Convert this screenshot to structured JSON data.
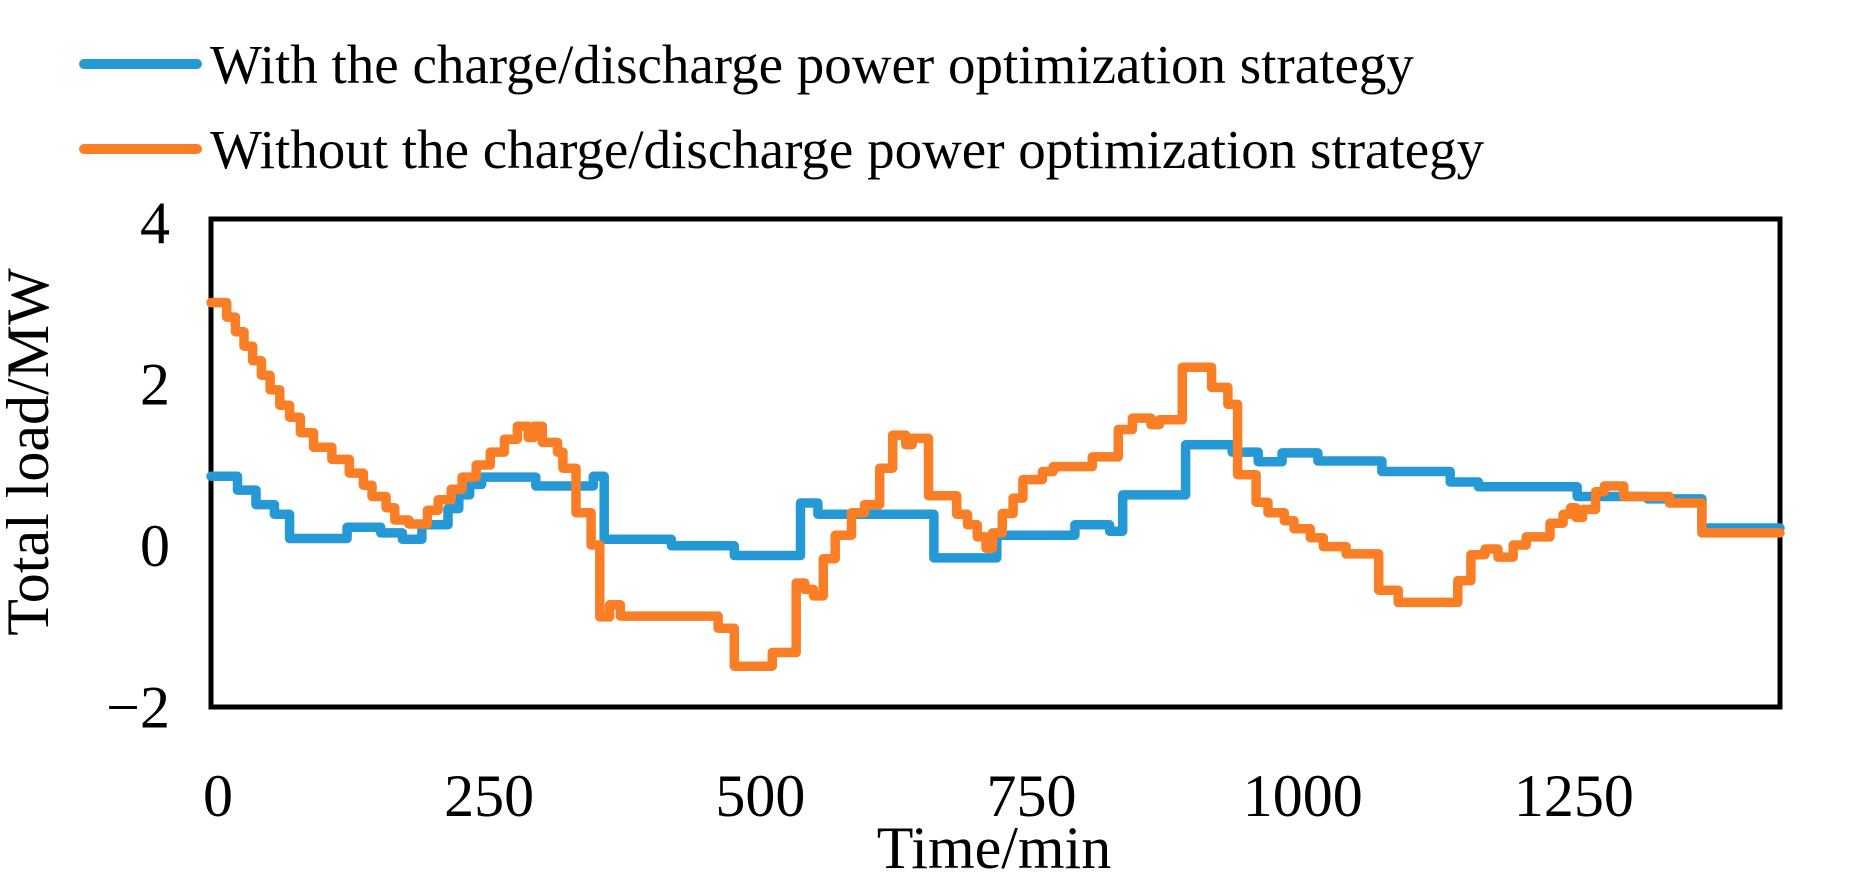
{
  "chart_data": {
    "type": "line",
    "line_style": "step-after",
    "title": "",
    "xlabel": "Time/min",
    "ylabel": "Total load/MW",
    "xlim": [
      0,
      1440
    ],
    "ylim": [
      -2,
      4
    ],
    "grid": false,
    "legend_position": "top-left",
    "x_ticks": [
      {
        "value": 0,
        "label": "0"
      },
      {
        "value": 250,
        "label": "250"
      },
      {
        "value": 500,
        "label": "500"
      },
      {
        "value": 750,
        "label": "750"
      },
      {
        "value": 1000,
        "label": "1000"
      },
      {
        "value": 1250,
        "label": "1250"
      }
    ],
    "y_ticks": [
      {
        "value": 4,
        "label": "4"
      },
      {
        "value": 2,
        "label": "2"
      },
      {
        "value": 0,
        "label": "0"
      },
      {
        "value": -2,
        "label": "−2"
      }
    ],
    "series": [
      {
        "name": "With the charge/discharge power optimization strategy",
        "color": "#2499D6",
        "points": [
          [
            0,
            0.85
          ],
          [
            18,
            0.68
          ],
          [
            35,
            0.5
          ],
          [
            52,
            0.38
          ],
          [
            66,
            0.08
          ],
          [
            119,
            0.22
          ],
          [
            150,
            0.15
          ],
          [
            170,
            0.07
          ],
          [
            188,
            0.25
          ],
          [
            212,
            0.45
          ],
          [
            222,
            0.62
          ],
          [
            232,
            0.75
          ],
          [
            243,
            0.84
          ],
          [
            293,
            0.73
          ],
          [
            346,
            0.85
          ],
          [
            356,
            0.07
          ],
          [
            418,
            -0.01
          ],
          [
            476,
            -0.13
          ],
          [
            537,
            0.52
          ],
          [
            553,
            0.38
          ],
          [
            660,
            -0.16
          ],
          [
            718,
            0.12
          ],
          [
            790,
            0.25
          ],
          [
            822,
            0.17
          ],
          [
            834,
            0.62
          ],
          [
            892,
            1.24
          ],
          [
            935,
            1.15
          ],
          [
            959,
            1.03
          ],
          [
            981,
            1.14
          ],
          [
            1014,
            1.04
          ],
          [
            1073,
            0.91
          ],
          [
            1136,
            0.78
          ],
          [
            1162,
            0.72
          ],
          [
            1253,
            0.6
          ],
          [
            1318,
            0.57
          ],
          [
            1368,
            0.21
          ],
          [
            1440,
            0.21
          ]
        ]
      },
      {
        "name": "Without the charge/discharge power optimization strategy",
        "color": "#F97E26",
        "points": [
          [
            0,
            3.0
          ],
          [
            8,
            2.82
          ],
          [
            16,
            2.64
          ],
          [
            24,
            2.46
          ],
          [
            32,
            2.28
          ],
          [
            40,
            2.1
          ],
          [
            48,
            1.92
          ],
          [
            57,
            1.73
          ],
          [
            66,
            1.58
          ],
          [
            76,
            1.39
          ],
          [
            88,
            1.21
          ],
          [
            105,
            1.06
          ],
          [
            121,
            0.89
          ],
          [
            134,
            0.74
          ],
          [
            142,
            0.6
          ],
          [
            155,
            0.46
          ],
          [
            163,
            0.31
          ],
          [
            176,
            0.26
          ],
          [
            193,
            0.43
          ],
          [
            203,
            0.56
          ],
          [
            215,
            0.69
          ],
          [
            225,
            0.84
          ],
          [
            238,
            0.99
          ],
          [
            251,
            1.15
          ],
          [
            264,
            1.31
          ],
          [
            276,
            1.47
          ],
          [
            286,
            1.33
          ],
          [
            291,
            1.47
          ],
          [
            299,
            1.27
          ],
          [
            313,
            1.15
          ],
          [
            318,
            0.95
          ],
          [
            330,
            0.4
          ],
          [
            344,
            0.0
          ],
          [
            352,
            -0.89
          ],
          [
            361,
            -0.74
          ],
          [
            371,
            -0.88
          ],
          [
            461,
            -1.03
          ],
          [
            476,
            -1.5
          ],
          [
            511,
            -1.33
          ],
          [
            533,
            -0.47
          ],
          [
            541,
            -0.55
          ],
          [
            549,
            -0.63
          ],
          [
            558,
            -0.17
          ],
          [
            569,
            0.12
          ],
          [
            584,
            0.4
          ],
          [
            596,
            0.5
          ],
          [
            610,
            0.95
          ],
          [
            622,
            1.36
          ],
          [
            634,
            1.24
          ],
          [
            640,
            1.32
          ],
          [
            655,
            0.61
          ],
          [
            681,
            0.38
          ],
          [
            691,
            0.25
          ],
          [
            700,
            0.1
          ],
          [
            708,
            -0.04
          ],
          [
            714,
            0.15
          ],
          [
            723,
            0.39
          ],
          [
            733,
            0.58
          ],
          [
            742,
            0.81
          ],
          [
            760,
            0.91
          ],
          [
            770,
            0.97
          ],
          [
            806,
            1.09
          ],
          [
            830,
            1.43
          ],
          [
            843,
            1.57
          ],
          [
            860,
            1.49
          ],
          [
            868,
            1.55
          ],
          [
            889,
            2.2
          ],
          [
            916,
            1.95
          ],
          [
            931,
            1.74
          ],
          [
            940,
            0.87
          ],
          [
            957,
            0.53
          ],
          [
            968,
            0.4
          ],
          [
            983,
            0.3
          ],
          [
            992,
            0.2
          ],
          [
            1007,
            0.09
          ],
          [
            1019,
            -0.02
          ],
          [
            1040,
            -0.11
          ],
          [
            1070,
            -0.56
          ],
          [
            1088,
            -0.71
          ],
          [
            1143,
            -0.44
          ],
          [
            1155,
            -0.12
          ],
          [
            1168,
            -0.05
          ],
          [
            1180,
            -0.15
          ],
          [
            1194,
            0.0
          ],
          [
            1206,
            0.1
          ],
          [
            1228,
            0.27
          ],
          [
            1240,
            0.38
          ],
          [
            1247,
            0.46
          ],
          [
            1252,
            0.34
          ],
          [
            1258,
            0.44
          ],
          [
            1270,
            0.66
          ],
          [
            1278,
            0.73
          ],
          [
            1296,
            0.6
          ],
          [
            1338,
            0.52
          ],
          [
            1368,
            0.15
          ],
          [
            1440,
            0.15
          ]
        ]
      }
    ]
  }
}
